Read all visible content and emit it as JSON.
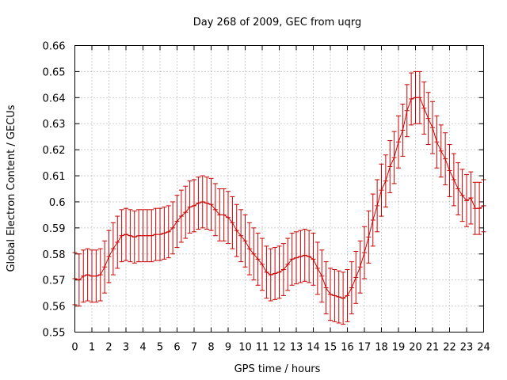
{
  "chart_data": {
    "type": "line",
    "title": "Day 268 of 2009, GEC from uqrg",
    "xlabel": "GPS time / hours",
    "ylabel": "Global Electron Content / GECUs",
    "xlim": [
      0,
      24
    ],
    "ylim": [
      0.55,
      0.66
    ],
    "xticks": [
      0,
      1,
      2,
      3,
      4,
      5,
      6,
      7,
      8,
      9,
      10,
      11,
      12,
      13,
      14,
      15,
      16,
      17,
      18,
      19,
      20,
      21,
      22,
      23,
      24
    ],
    "yticks": [
      0.55,
      0.56,
      0.57,
      0.58,
      0.59,
      0.6,
      0.61,
      0.62,
      0.63,
      0.64,
      0.65,
      0.66
    ],
    "ytick_labels": [
      "0.55",
      "0.56",
      "0.57",
      "0.58",
      "0.59",
      "0.6",
      "0.61",
      "0.62",
      "0.63",
      "0.64",
      "0.65",
      "0.66"
    ],
    "grid": true,
    "error_bar_halfwidth": 0.01,
    "series": [
      {
        "color": "#cc0000",
        "x": [
          0,
          0.25,
          0.5,
          0.75,
          1,
          1.25,
          1.5,
          1.75,
          2,
          2.25,
          2.5,
          2.75,
          3,
          3.25,
          3.5,
          3.75,
          4,
          4.25,
          4.5,
          4.75,
          5,
          5.25,
          5.5,
          5.75,
          6,
          6.25,
          6.5,
          6.75,
          7,
          7.25,
          7.5,
          7.75,
          8,
          8.25,
          8.5,
          8.75,
          9,
          9.25,
          9.5,
          9.75,
          10,
          10.25,
          10.5,
          10.75,
          11,
          11.25,
          11.5,
          11.75,
          12,
          12.25,
          12.5,
          12.75,
          13,
          13.25,
          13.5,
          13.75,
          14,
          14.25,
          14.5,
          14.75,
          15,
          15.25,
          15.5,
          15.75,
          16,
          16.25,
          16.5,
          16.75,
          17,
          17.25,
          17.5,
          17.75,
          18,
          18.25,
          18.5,
          18.75,
          19,
          19.25,
          19.5,
          19.75,
          20,
          20.25,
          20.5,
          20.75,
          21,
          21.25,
          21.5,
          21.75,
          22,
          22.25,
          22.5,
          22.75,
          23,
          23.25,
          23.5,
          23.75,
          24
        ],
        "y": [
          0.5705,
          0.57,
          0.5715,
          0.572,
          0.5715,
          0.5715,
          0.572,
          0.575,
          0.579,
          0.582,
          0.5845,
          0.587,
          0.5875,
          0.587,
          0.5865,
          0.587,
          0.587,
          0.587,
          0.587,
          0.5875,
          0.5875,
          0.588,
          0.5885,
          0.59,
          0.5925,
          0.5945,
          0.596,
          0.598,
          0.5985,
          0.5995,
          0.6,
          0.5995,
          0.599,
          0.597,
          0.595,
          0.595,
          0.594,
          0.592,
          0.589,
          0.587,
          0.585,
          0.582,
          0.58,
          0.578,
          0.576,
          0.573,
          0.572,
          0.5725,
          0.573,
          0.574,
          0.576,
          0.578,
          0.5785,
          0.579,
          0.5795,
          0.579,
          0.578,
          0.5745,
          0.5715,
          0.567,
          0.5645,
          0.564,
          0.5635,
          0.563,
          0.564,
          0.567,
          0.571,
          0.575,
          0.5805,
          0.5865,
          0.593,
          0.5985,
          0.6045,
          0.608,
          0.6135,
          0.617,
          0.623,
          0.6275,
          0.635,
          0.6395,
          0.64,
          0.64,
          0.636,
          0.632,
          0.6285,
          0.623,
          0.6195,
          0.6165,
          0.612,
          0.6085,
          0.605,
          0.6025,
          0.6005,
          0.6015,
          0.5975,
          0.5975,
          0.5985
        ]
      }
    ]
  }
}
